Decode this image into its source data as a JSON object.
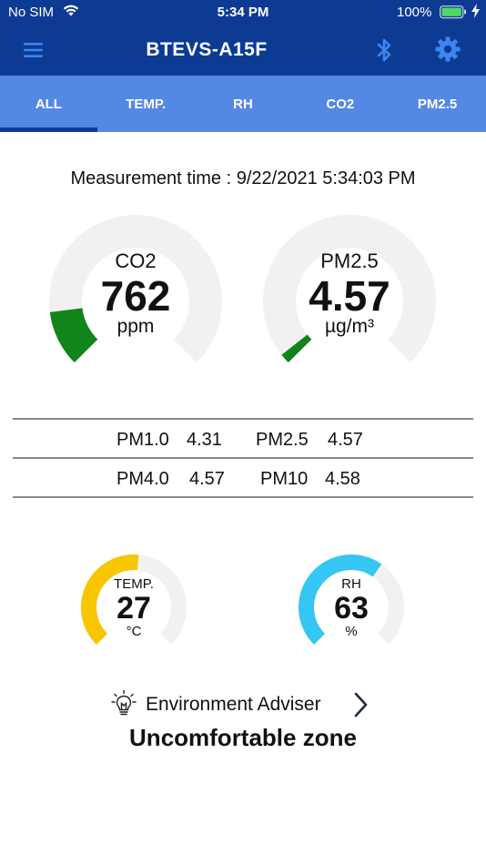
{
  "status_bar": {
    "carrier": "No SIM",
    "time": "5:34 PM",
    "battery_percent": "100%"
  },
  "nav": {
    "title": "BTEVS-A15F",
    "icons": [
      "menu-icon",
      "bluetooth-icon",
      "gear-icon"
    ]
  },
  "tabs": [
    {
      "label": "ALL",
      "active": true
    },
    {
      "label": "TEMP.",
      "active": false
    },
    {
      "label": "RH",
      "active": false
    },
    {
      "label": "CO2",
      "active": false
    },
    {
      "label": "PM2.5",
      "active": false
    }
  ],
  "measurement": {
    "label": "Measurement time : ",
    "value": "9/22/2021 5:34:03 PM"
  },
  "gauges": {
    "co2": {
      "label": "CO2",
      "value": "762",
      "unit": "ppm",
      "fill_fraction": 0.14,
      "color": "#11841a"
    },
    "pm25": {
      "label": "PM2.5",
      "value": "4.57",
      "unit": "µg/m³",
      "fill_fraction": 0.025,
      "color": "#11841a"
    },
    "temp": {
      "label": "TEMP.",
      "value": "27",
      "unit": "°C",
      "fill_fraction": 0.52,
      "color": "#f7c600"
    },
    "rh": {
      "label": "RH",
      "value": "63",
      "unit": "%",
      "fill_fraction": 0.63,
      "color": "#35c6f4"
    }
  },
  "pm_table": [
    [
      {
        "name": "PM1.0",
        "value": "4.31"
      },
      {
        "name": "PM2.5",
        "value": "4.57"
      }
    ],
    [
      {
        "name": "PM4.0",
        "value": "4.57"
      },
      {
        "name": "PM10",
        "value": "4.58"
      }
    ]
  ],
  "adviser": {
    "label": "Environment Adviser",
    "status": "Uncomfortable zone"
  },
  "colors": {
    "nav_bg": "#0d3b93",
    "tab_bg": "#5588e4",
    "track": "#f1f1f1",
    "bluetooth": "#3c86f0"
  }
}
